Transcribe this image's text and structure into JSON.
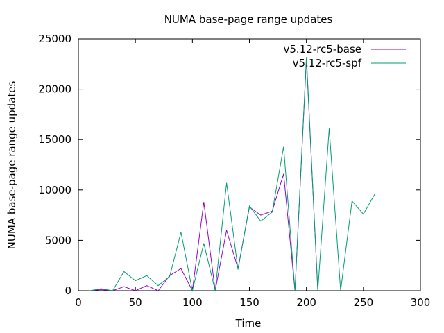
{
  "chart_data": {
    "type": "line",
    "title": "NUMA base-page range updates",
    "xlabel": "Time",
    "ylabel": "NUMA base-page range updates",
    "xlim": [
      0,
      300
    ],
    "ylim": [
      0,
      25000
    ],
    "xticks": [
      0,
      50,
      100,
      150,
      200,
      250,
      300
    ],
    "yticks": [
      0,
      5000,
      10000,
      15000,
      20000,
      25000
    ],
    "grid": false,
    "legend_position": "top-right",
    "series": [
      {
        "name": "v5.12-rc5-base",
        "color": "#9400d3",
        "x": [
          10,
          20,
          30,
          40,
          50,
          60,
          70,
          80,
          90,
          100,
          110,
          120,
          130,
          140,
          150,
          160,
          170,
          180,
          190,
          200,
          210
        ],
        "values": [
          0,
          100,
          0,
          400,
          0,
          500,
          0,
          1500,
          2200,
          0,
          8800,
          0,
          6000,
          2200,
          8300,
          7500,
          7900,
          11600,
          0,
          23000,
          0
        ]
      },
      {
        "name": "v5.12-rc5-spf",
        "color": "#009e73",
        "x": [
          10,
          20,
          30,
          40,
          50,
          60,
          70,
          80,
          90,
          100,
          110,
          120,
          130,
          140,
          150,
          160,
          170,
          180,
          190,
          200,
          210,
          220,
          230,
          240,
          250,
          260
        ],
        "values": [
          0,
          200,
          0,
          1900,
          1000,
          1500,
          500,
          1400,
          5800,
          0,
          4700,
          0,
          10700,
          2100,
          8400,
          6900,
          7800,
          14300,
          0,
          23200,
          0,
          16100,
          0,
          8900,
          7600,
          9600
        ]
      }
    ]
  }
}
